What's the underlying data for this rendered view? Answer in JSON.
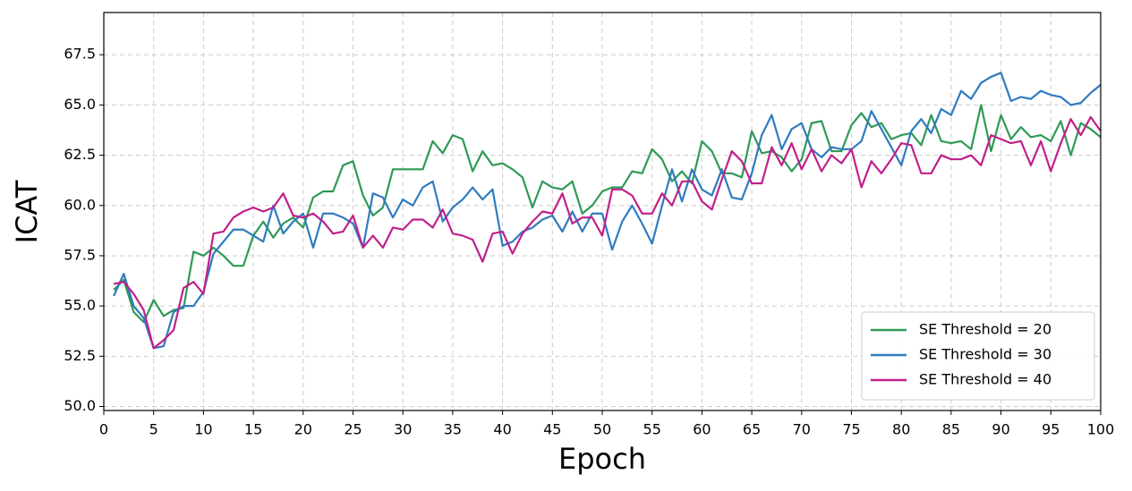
{
  "chart_data": {
    "type": "line",
    "x_label": "Epoch",
    "y_label": "ICAT",
    "x": [
      1,
      2,
      3,
      4,
      5,
      6,
      7,
      8,
      9,
      10,
      11,
      12,
      13,
      14,
      15,
      16,
      17,
      18,
      19,
      20,
      21,
      22,
      23,
      24,
      25,
      26,
      27,
      28,
      29,
      30,
      31,
      32,
      33,
      34,
      35,
      36,
      37,
      38,
      39,
      40,
      41,
      42,
      43,
      44,
      45,
      46,
      47,
      48,
      49,
      50,
      51,
      52,
      53,
      54,
      55,
      56,
      57,
      58,
      59,
      60,
      61,
      62,
      63,
      64,
      65,
      66,
      67,
      68,
      69,
      70,
      71,
      72,
      73,
      74,
      75,
      76,
      77,
      78,
      79,
      80,
      81,
      82,
      83,
      84,
      85,
      86,
      87,
      88,
      89,
      90,
      91,
      92,
      93,
      94,
      95,
      96,
      97,
      98,
      99,
      100
    ],
    "series": [
      {
        "name": "SE Threshold = 20",
        "color": "#2e9a57",
        "values": [
          55.8,
          56.3,
          54.7,
          54.2,
          55.3,
          54.5,
          54.8,
          54.9,
          57.7,
          57.5,
          57.9,
          57.5,
          57.0,
          57.0,
          58.5,
          59.2,
          58.4,
          59.1,
          59.4,
          58.9,
          60.4,
          60.7,
          60.7,
          62.0,
          62.2,
          60.5,
          59.5,
          59.9,
          61.8,
          61.8,
          61.8,
          61.8,
          63.2,
          62.6,
          63.5,
          63.3,
          61.7,
          62.7,
          62.0,
          62.1,
          61.8,
          61.4,
          59.9,
          61.2,
          60.9,
          60.8,
          61.2,
          59.6,
          60.0,
          60.7,
          60.9,
          60.9,
          61.7,
          61.6,
          62.8,
          62.3,
          61.2,
          61.7,
          61.1,
          63.2,
          62.7,
          61.6,
          61.6,
          61.4,
          63.7,
          62.6,
          62.7,
          62.4,
          61.7,
          62.3,
          64.1,
          64.2,
          62.7,
          62.7,
          64.0,
          64.6,
          63.9,
          64.1,
          63.3,
          63.5,
          63.6,
          63.0,
          64.5,
          63.2,
          63.1,
          63.2,
          62.8,
          65.0,
          62.7,
          64.5,
          63.3,
          63.9,
          63.4,
          63.5,
          63.2,
          64.2,
          62.5,
          64.1,
          63.8,
          63.4
        ]
      },
      {
        "name": "SE Threshold = 30",
        "color": "#2f7bbf",
        "values": [
          55.5,
          56.6,
          55.0,
          54.4,
          52.9,
          53.0,
          54.7,
          55.0,
          55.0,
          55.7,
          57.6,
          58.2,
          58.8,
          58.8,
          58.5,
          58.2,
          60.0,
          58.6,
          59.2,
          59.6,
          57.9,
          59.6,
          59.6,
          59.4,
          59.1,
          57.9,
          60.6,
          60.4,
          59.4,
          60.3,
          60.0,
          60.9,
          61.2,
          59.2,
          59.9,
          60.3,
          60.9,
          60.3,
          60.8,
          58.0,
          58.2,
          58.7,
          58.9,
          59.3,
          59.5,
          58.7,
          59.7,
          58.7,
          59.6,
          59.6,
          57.8,
          59.2,
          60.0,
          59.1,
          58.1,
          60.0,
          61.8,
          60.2,
          61.8,
          60.8,
          60.5,
          61.8,
          60.4,
          60.3,
          61.6,
          63.5,
          64.5,
          62.8,
          63.8,
          64.1,
          62.8,
          62.4,
          62.9,
          62.8,
          62.8,
          63.2,
          64.7,
          63.8,
          62.9,
          62.0,
          63.7,
          64.3,
          63.6,
          64.8,
          64.5,
          65.7,
          65.3,
          66.1,
          66.4,
          66.6,
          65.2,
          65.4,
          65.3,
          65.7,
          65.5,
          65.4,
          65.0,
          65.1,
          65.6,
          66.0
        ]
      },
      {
        "name": "SE Threshold = 40",
        "color": "#c0208a",
        "values": [
          56.1,
          56.2,
          55.6,
          54.8,
          52.9,
          53.3,
          53.8,
          55.9,
          56.2,
          55.6,
          58.6,
          58.7,
          59.4,
          59.7,
          59.9,
          59.7,
          59.9,
          60.6,
          59.5,
          59.4,
          59.6,
          59.2,
          58.6,
          58.7,
          59.5,
          57.9,
          58.5,
          57.9,
          58.9,
          58.8,
          59.3,
          59.3,
          58.9,
          59.8,
          58.6,
          58.5,
          58.3,
          57.2,
          58.6,
          58.7,
          57.6,
          58.6,
          59.2,
          59.7,
          59.6,
          60.6,
          59.1,
          59.4,
          59.4,
          58.5,
          60.8,
          60.8,
          60.5,
          59.6,
          59.6,
          60.6,
          60.0,
          61.2,
          61.2,
          60.2,
          59.8,
          61.3,
          62.7,
          62.2,
          61.1,
          61.1,
          62.9,
          62.0,
          63.1,
          61.8,
          62.8,
          61.7,
          62.5,
          62.1,
          62.8,
          60.9,
          62.2,
          61.6,
          62.3,
          63.1,
          63.0,
          61.6,
          61.6,
          62.5,
          62.3,
          62.3,
          62.5,
          62.0,
          63.5,
          63.3,
          63.1,
          63.2,
          62.0,
          63.2,
          61.7,
          63.1,
          64.3,
          63.5,
          64.4,
          63.7
        ]
      }
    ],
    "xlim": [
      0,
      100
    ],
    "xticks": [
      0,
      5,
      10,
      15,
      20,
      25,
      30,
      35,
      40,
      45,
      50,
      55,
      60,
      65,
      70,
      75,
      80,
      85,
      90,
      95,
      100
    ],
    "ylim": [
      49.8,
      69.6
    ],
    "yticks": [
      {
        "value": 50,
        "label": "50.0"
      },
      52.5,
      {
        "value": 55,
        "label": "55.0"
      },
      57.5,
      {
        "value": 60,
        "label": "60.0"
      },
      62.5,
      {
        "value": 65,
        "label": "65.0"
      },
      67.5
    ],
    "grid": true,
    "legend": "lower right"
  }
}
